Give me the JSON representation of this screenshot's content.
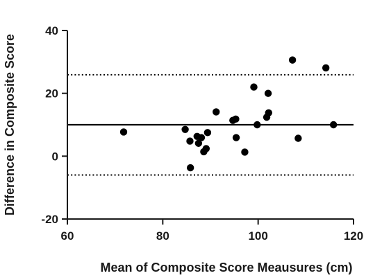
{
  "chart_data": {
    "type": "scatter",
    "title": "",
    "xlabel": "Mean of Composite Score Meausures (cm)",
    "ylabel": "Difference in Composite Score",
    "xlim": [
      60,
      120
    ],
    "ylim": [
      -20,
      40
    ],
    "xticks": [
      "60",
      "80",
      "100",
      "120"
    ],
    "yticks": [
      "-20",
      "0",
      "20",
      "40"
    ],
    "grid": false,
    "legend": "none",
    "points": [
      {
        "x": 71.8,
        "y": 7.7
      },
      {
        "x": 84.7,
        "y": 8.5
      },
      {
        "x": 85.7,
        "y": 4.8
      },
      {
        "x": 85.8,
        "y": -3.7
      },
      {
        "x": 87.2,
        "y": 6.3
      },
      {
        "x": 87.5,
        "y": 4.1
      },
      {
        "x": 88.1,
        "y": 5.9
      },
      {
        "x": 88.6,
        "y": 1.4
      },
      {
        "x": 89.1,
        "y": 2.4
      },
      {
        "x": 89.4,
        "y": 7.5
      },
      {
        "x": 91.2,
        "y": 14.1
      },
      {
        "x": 94.7,
        "y": 11.4
      },
      {
        "x": 95.3,
        "y": 11.8
      },
      {
        "x": 95.4,
        "y": 5.9
      },
      {
        "x": 97.2,
        "y": 1.3
      },
      {
        "x": 99.1,
        "y": 22.0
      },
      {
        "x": 99.8,
        "y": 10.0
      },
      {
        "x": 101.8,
        "y": 12.4
      },
      {
        "x": 102.1,
        "y": 20.0
      },
      {
        "x": 102.2,
        "y": 13.8
      },
      {
        "x": 107.2,
        "y": 30.6
      },
      {
        "x": 108.4,
        "y": 5.7
      },
      {
        "x": 114.2,
        "y": 28.1
      },
      {
        "x": 115.8,
        "y": 10.0
      }
    ],
    "reference_lines": [
      {
        "y": 10.0,
        "style": "solid"
      },
      {
        "y": 25.9,
        "style": "dotted"
      },
      {
        "y": -6.0,
        "style": "dotted"
      }
    ],
    "colors": {
      "axis": "#1a1a1a",
      "points": "#000000",
      "lines": "#000000"
    }
  }
}
